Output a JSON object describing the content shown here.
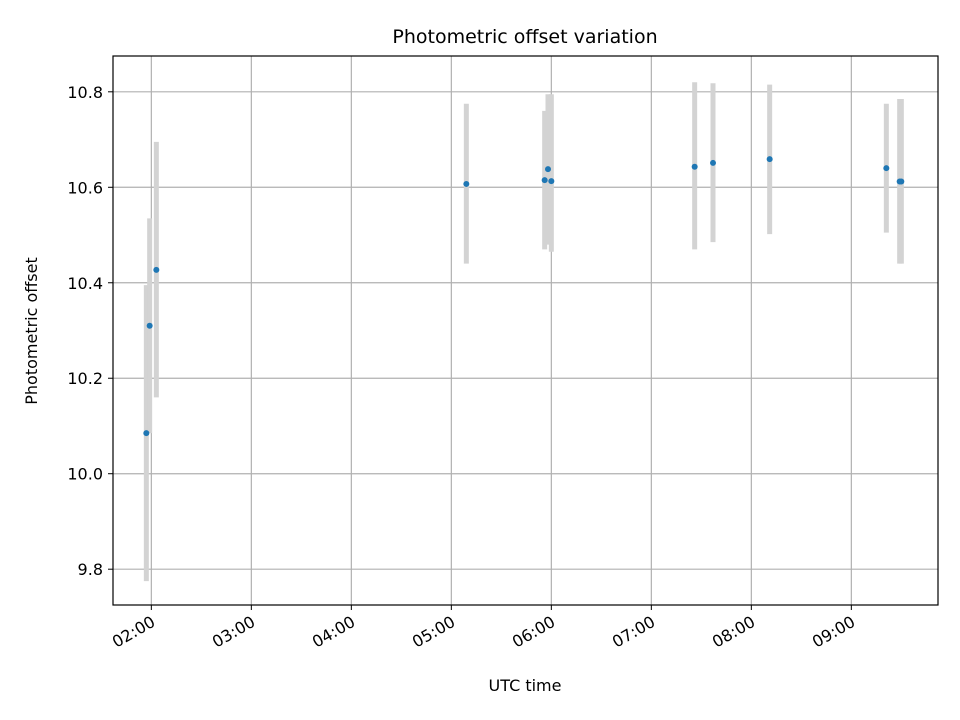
{
  "chart_data": {
    "type": "scatter",
    "title": "Photometric offset variation",
    "xlabel": "UTC time",
    "ylabel": "Photometric offset",
    "grid": true,
    "x_tick_labels": [
      "02:00",
      "03:00",
      "04:00",
      "05:00",
      "06:00",
      "07:00",
      "08:00",
      "09:00"
    ],
    "y_tick_labels": [
      "9.8",
      "10.0",
      "10.2",
      "10.4",
      "10.6",
      "10.8"
    ],
    "y_ticks": [
      9.8,
      10.0,
      10.2,
      10.4,
      10.6,
      10.8
    ],
    "xlim": [
      "01:37",
      "09:52"
    ],
    "ylim": [
      9.725,
      10.875
    ],
    "colors": {
      "points": "#1f77b4",
      "errorbars": "#d3d3d3",
      "grid": "#b0b0b0"
    },
    "points": [
      {
        "x": "01:57",
        "y": 10.085,
        "low": 9.775,
        "high": 10.395
      },
      {
        "x": "01:59",
        "y": 10.31,
        "low": 10.085,
        "high": 10.535
      },
      {
        "x": "02:03",
        "y": 10.427,
        "low": 10.16,
        "high": 10.695
      },
      {
        "x": "05:09",
        "y": 10.607,
        "low": 10.44,
        "high": 10.775
      },
      {
        "x": "05:56",
        "y": 10.615,
        "low": 10.47,
        "high": 10.76
      },
      {
        "x": "05:58",
        "y": 10.638,
        "low": 10.48,
        "high": 10.795
      },
      {
        "x": "06:00",
        "y": 10.613,
        "low": 10.465,
        "high": 10.795
      },
      {
        "x": "07:26",
        "y": 10.643,
        "low": 10.47,
        "high": 10.82
      },
      {
        "x": "07:37",
        "y": 10.651,
        "low": 10.485,
        "high": 10.818
      },
      {
        "x": "08:11",
        "y": 10.659,
        "low": 10.502,
        "high": 10.815
      },
      {
        "x": "09:21",
        "y": 10.64,
        "low": 10.505,
        "high": 10.775
      },
      {
        "x": "09:29",
        "y": 10.612,
        "low": 10.44,
        "high": 10.785
      },
      {
        "x": "09:30",
        "y": 10.612,
        "low": 10.44,
        "high": 10.785
      }
    ]
  }
}
